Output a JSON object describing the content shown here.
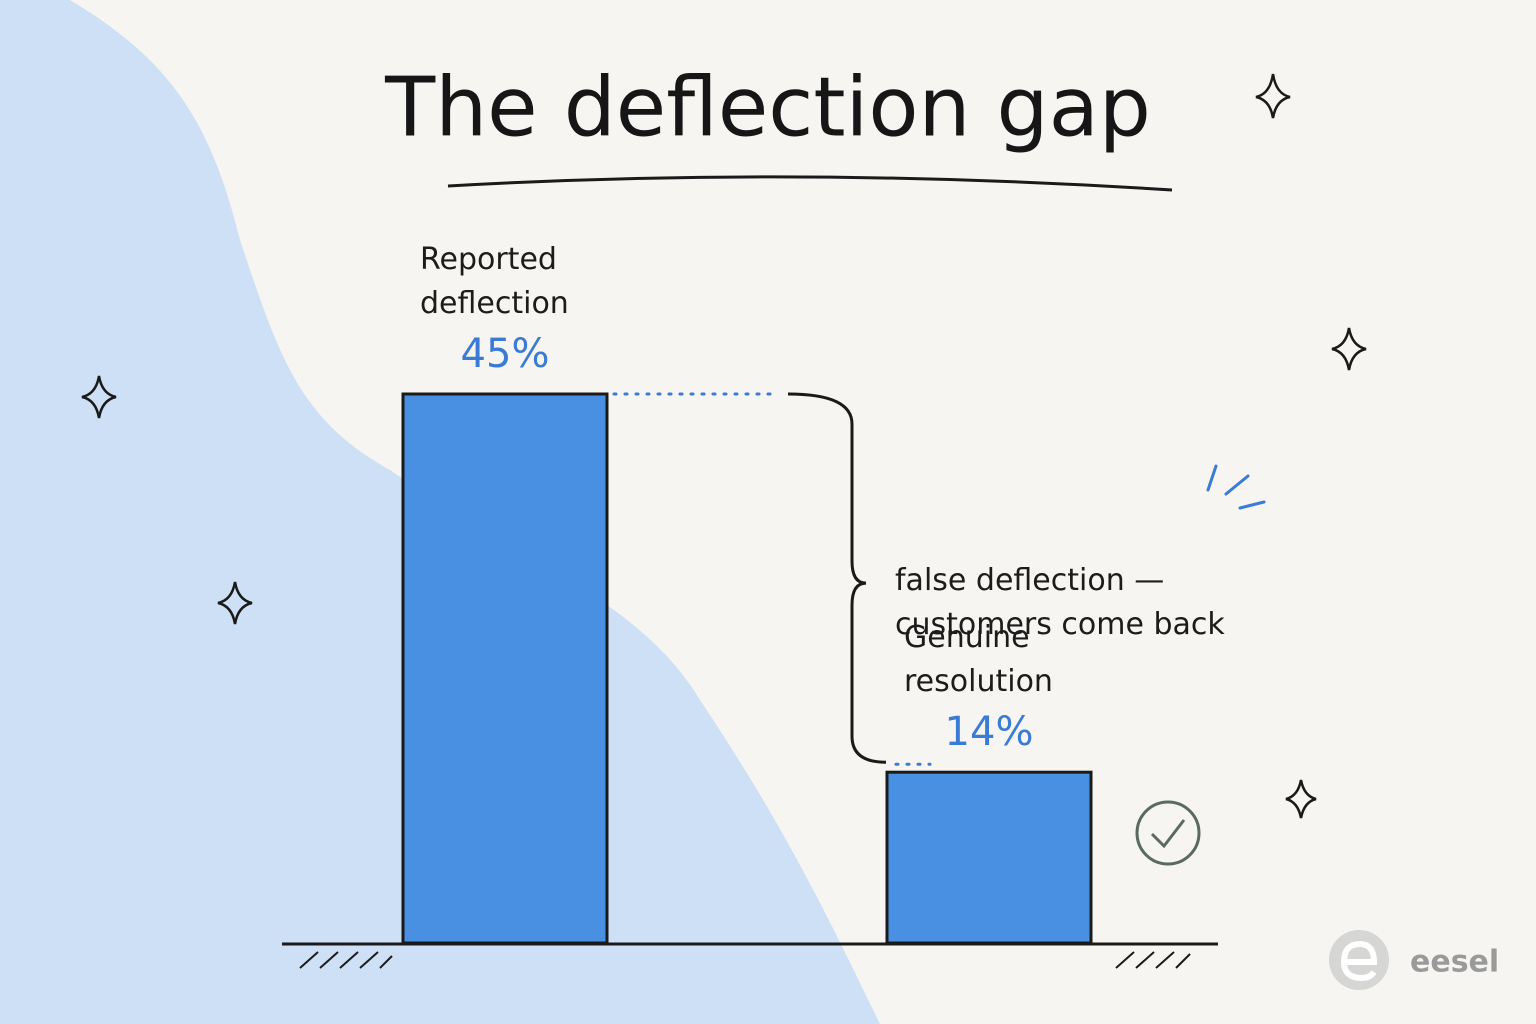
{
  "chart_data": {
    "type": "bar",
    "title": "The deflection gap",
    "categories": [
      "Reported deflection",
      "Genuine resolution"
    ],
    "values": [
      45,
      14
    ],
    "value_labels": [
      "45%",
      "14%"
    ],
    "color": "#4a90e2",
    "annotation": "false deflection — customers come back"
  },
  "brand": "eesel"
}
